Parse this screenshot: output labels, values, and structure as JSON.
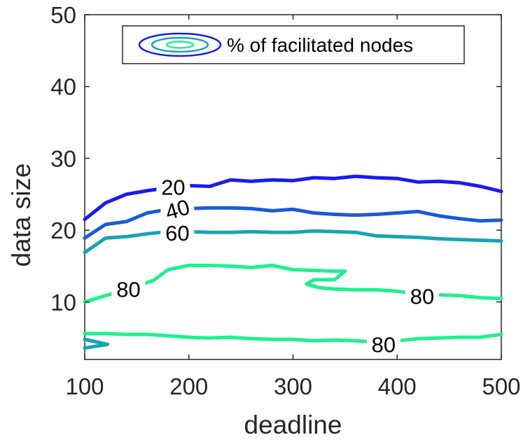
{
  "chart_data": {
    "type": "contour",
    "xlabel": "deadline",
    "ylabel": "data size",
    "xlim": [
      100,
      500
    ],
    "ylim": [
      2,
      50
    ],
    "x_ticks": [
      100,
      200,
      300,
      400,
      500
    ],
    "y_ticks": [
      10,
      20,
      30,
      40,
      50
    ],
    "grid": false,
    "legend": {
      "position": "top-center",
      "label": "% of facilitated nodes"
    },
    "colors": {
      "20": "#1a1aee",
      "40": "#1a5ad6",
      "60": "#17a4b0",
      "80": "#1ff08f",
      "text": "#262626"
    },
    "contours": [
      {
        "level": 20,
        "label": "20",
        "label_at": [
          185,
          26.0
        ],
        "points": [
          [
            100,
            21.5
          ],
          [
            120,
            23.8
          ],
          [
            140,
            25.0
          ],
          [
            160,
            25.5
          ],
          [
            180,
            25.9
          ],
          [
            200,
            26.2
          ],
          [
            220,
            26.1
          ],
          [
            240,
            27.0
          ],
          [
            260,
            26.8
          ],
          [
            280,
            27.0
          ],
          [
            300,
            26.9
          ],
          [
            320,
            27.3
          ],
          [
            340,
            27.2
          ],
          [
            360,
            27.5
          ],
          [
            380,
            27.3
          ],
          [
            400,
            27.2
          ],
          [
            420,
            26.7
          ],
          [
            440,
            26.8
          ],
          [
            460,
            26.6
          ],
          [
            480,
            26.1
          ],
          [
            500,
            25.4
          ]
        ]
      },
      {
        "level": 40,
        "label": "40",
        "label_at": [
          189,
          22.9
        ],
        "points": [
          [
            100,
            18.9
          ],
          [
            120,
            20.8
          ],
          [
            140,
            21.2
          ],
          [
            160,
            22.4
          ],
          [
            180,
            22.9
          ],
          [
            200,
            23.0
          ],
          [
            220,
            23.1
          ],
          [
            240,
            23.1
          ],
          [
            260,
            23.0
          ],
          [
            280,
            22.7
          ],
          [
            300,
            22.9
          ],
          [
            320,
            22.4
          ],
          [
            340,
            22.2
          ],
          [
            360,
            22.1
          ],
          [
            380,
            22.2
          ],
          [
            400,
            22.4
          ],
          [
            420,
            22.6
          ],
          [
            440,
            22.0
          ],
          [
            460,
            21.6
          ],
          [
            480,
            21.3
          ],
          [
            500,
            21.4
          ]
        ]
      },
      {
        "level": 60,
        "label": "60",
        "label_at": [
          189,
          19.6
        ],
        "points": [
          [
            100,
            16.9
          ],
          [
            120,
            18.9
          ],
          [
            140,
            19.1
          ],
          [
            160,
            19.5
          ],
          [
            180,
            19.8
          ],
          [
            200,
            19.8
          ],
          [
            220,
            19.7
          ],
          [
            240,
            19.7
          ],
          [
            260,
            19.8
          ],
          [
            280,
            19.7
          ],
          [
            300,
            19.7
          ],
          [
            320,
            19.9
          ],
          [
            340,
            19.8
          ],
          [
            360,
            19.7
          ],
          [
            380,
            19.2
          ],
          [
            400,
            19.1
          ],
          [
            420,
            19.0
          ],
          [
            440,
            18.8
          ],
          [
            460,
            18.7
          ],
          [
            480,
            18.6
          ],
          [
            500,
            18.5
          ]
        ]
      },
      {
        "level": 80,
        "label": "80",
        "label_at": [
          142,
          11.8
        ],
        "points": [
          [
            100,
            10.0
          ],
          [
            118,
            10.8
          ],
          [
            142,
            11.8
          ],
          [
            166,
            13.0
          ],
          [
            180,
            14.5
          ],
          [
            200,
            15.1
          ],
          [
            220,
            15.1
          ],
          [
            240,
            15.0
          ],
          [
            260,
            14.8
          ],
          [
            280,
            15.1
          ],
          [
            300,
            14.5
          ],
          [
            320,
            14.4
          ],
          [
            340,
            14.3
          ],
          [
            350,
            14.3
          ],
          [
            340,
            13.1
          ],
          [
            320,
            13.1
          ],
          [
            313,
            12.5
          ],
          [
            325,
            12.0
          ],
          [
            340,
            11.8
          ],
          [
            360,
            11.7
          ],
          [
            380,
            11.7
          ],
          [
            400,
            11.5
          ],
          [
            420,
            11.1
          ],
          [
            440,
            11.0
          ],
          [
            460,
            10.9
          ],
          [
            480,
            10.6
          ],
          [
            500,
            10.5
          ]
        ]
      },
      {
        "level": 80,
        "label": "80",
        "label_at": [
          424,
          10.8
        ],
        "points": []
      },
      {
        "level": 80,
        "label": "80",
        "label_at": [
          387,
          4.1
        ],
        "points": [
          [
            100,
            5.6
          ],
          [
            120,
            5.6
          ],
          [
            140,
            5.5
          ],
          [
            160,
            5.5
          ],
          [
            180,
            5.3
          ],
          [
            200,
            5.1
          ],
          [
            220,
            5.0
          ],
          [
            240,
            5.1
          ],
          [
            260,
            4.9
          ],
          [
            280,
            4.8
          ],
          [
            300,
            4.8
          ],
          [
            320,
            4.6
          ],
          [
            340,
            4.7
          ],
          [
            360,
            4.6
          ],
          [
            380,
            4.4
          ],
          [
            400,
            4.6
          ],
          [
            420,
            4.9
          ],
          [
            440,
            5.0
          ],
          [
            460,
            5.1
          ],
          [
            480,
            5.1
          ],
          [
            500,
            5.5
          ]
        ]
      },
      {
        "level": 70,
        "label": "",
        "label_at": null,
        "points": [
          [
            100,
            3.6
          ],
          [
            122,
            4.1
          ],
          [
            100,
            4.8
          ]
        ]
      }
    ]
  }
}
